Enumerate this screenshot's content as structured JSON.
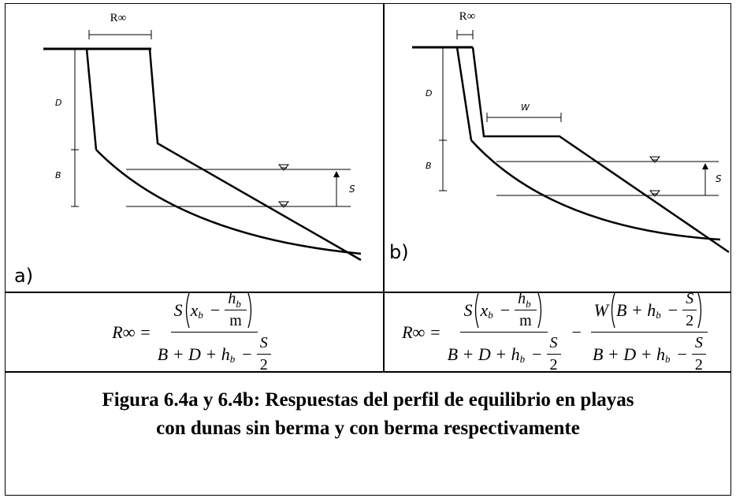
{
  "panels": [
    {
      "label": "a)",
      "r_label": "R∞",
      "d_label": "D",
      "b_label": "B",
      "s_label": "S"
    },
    {
      "label": "b)",
      "r_label": "R∞",
      "d_label": "D",
      "b_label": "B",
      "s_label": "S",
      "w_label": "W"
    }
  ],
  "formulas": [
    {
      "lhs": "R∞ =",
      "terms": [
        {
          "num": {
            "pre": "S",
            "inner": "x",
            "inner_sub": "b",
            "op": "−",
            "f_num": "h",
            "f_num_sub": "b",
            "f_den": "m"
          },
          "den": {
            "text": "B + D + h",
            "sub": "b",
            "op": "−",
            "f_num": "S",
            "f_den": "2"
          }
        }
      ]
    },
    {
      "lhs": "R∞ =",
      "terms": [
        {
          "num": {
            "pre": "S",
            "inner": "x",
            "inner_sub": "b",
            "op": "−",
            "f_num": "h",
            "f_num_sub": "b",
            "f_den": "m"
          },
          "den": {
            "text": "B + D + h",
            "sub": "b",
            "op": "−",
            "f_num": "S",
            "f_den": "2"
          }
        },
        {
          "sign": "−",
          "num": {
            "pre": "W",
            "inner": "B + h",
            "inner_sub": "b",
            "op": "−",
            "f_num": "S",
            "f_den": "2"
          },
          "den": {
            "text": "B + D + h",
            "sub": "b",
            "op": "−",
            "f_num": "S",
            "f_den": "2"
          }
        }
      ]
    }
  ],
  "caption": [
    "Figura 6.4a y 6.4b: Respuestas del perfil de equilibrio en playas",
    "con dunas sin berma y con berma respectivamente"
  ]
}
